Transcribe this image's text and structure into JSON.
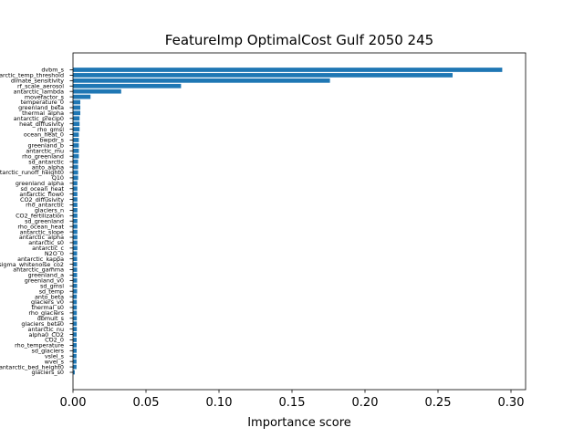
{
  "chart_data": {
    "type": "bar",
    "orientation": "horizontal",
    "title": "FeatureImp OptimalCost Gulf 2050 245",
    "xlabel": "Importance score",
    "ylabel": "",
    "xlim": [
      0,
      0.31
    ],
    "xticks": [
      "0.00",
      "0.05",
      "0.10",
      "0.15",
      "0.20",
      "0.25",
      "0.30"
    ],
    "xtick_values": [
      0,
      0.05,
      0.1,
      0.15,
      0.2,
      0.25,
      0.3
    ],
    "grid": false,
    "bar_color": "#1f77b4",
    "categories": [
      "dvbm_s",
      "antarctic_temp_threshold",
      "dimate_sensitivity",
      "rf_scale_aerosol",
      "antarctic_lambda",
      "movefactor_s",
      "temperature_0",
      "greenland_beta",
      "thermal_alpha",
      "antarctic_precip0",
      "heat_diffusivity",
      "rho_gmsl",
      "ocean_heat_0",
      "bwpdr_s",
      "greenland_b",
      "antarctic_mu",
      "rho_greenland",
      "sd_antarctic",
      "anto_alpha",
      "antarctic_runoff_height0",
      "Q10",
      "greenland_alpha",
      "sd_ocean_heat",
      "antarctic_flow0",
      "CO2_diffusivity",
      "rho_antarctic",
      "glaciers_n",
      "CO2_fertilization",
      "sd_greenland",
      "rho_ocean_heat",
      "antarctic_slope",
      "antarctic_alpha",
      "antarctic_s0",
      "antarctic_c",
      "N2O_0",
      "antarctic_kappa",
      "sigma_whitenoise_co2",
      "antarctic_gamma",
      "greenland_a",
      "greenland_v0",
      "sd_gmsl",
      "sd_temp",
      "anto_beta",
      "glaciers_v0",
      "thermal_s0",
      "rho_glaciers",
      "dbmult_s",
      "glaciers_beta0",
      "antarctic_nu",
      "alpha0_CO2",
      "CO2_0",
      "rho_temperature",
      "sd_glaciers",
      "vslel_s",
      "wvel_s",
      "antarctic_bed_height0",
      "glaciers_s0"
    ],
    "values": [
      0.294,
      0.26,
      0.176,
      0.074,
      0.033,
      0.012,
      0.005,
      0.005,
      0.005,
      0.0045,
      0.0045,
      0.0045,
      0.004,
      0.004,
      0.004,
      0.004,
      0.004,
      0.0035,
      0.0035,
      0.0035,
      0.0035,
      0.003,
      0.003,
      0.003,
      0.003,
      0.003,
      0.003,
      0.003,
      0.003,
      0.003,
      0.003,
      0.003,
      0.003,
      0.003,
      0.0028,
      0.0028,
      0.0028,
      0.0028,
      0.0028,
      0.0028,
      0.0028,
      0.0028,
      0.0026,
      0.0026,
      0.0026,
      0.0026,
      0.0026,
      0.0026,
      0.0026,
      0.0025,
      0.0025,
      0.0025,
      0.0025,
      0.0024,
      0.0024,
      0.0024,
      0.0012
    ]
  }
}
